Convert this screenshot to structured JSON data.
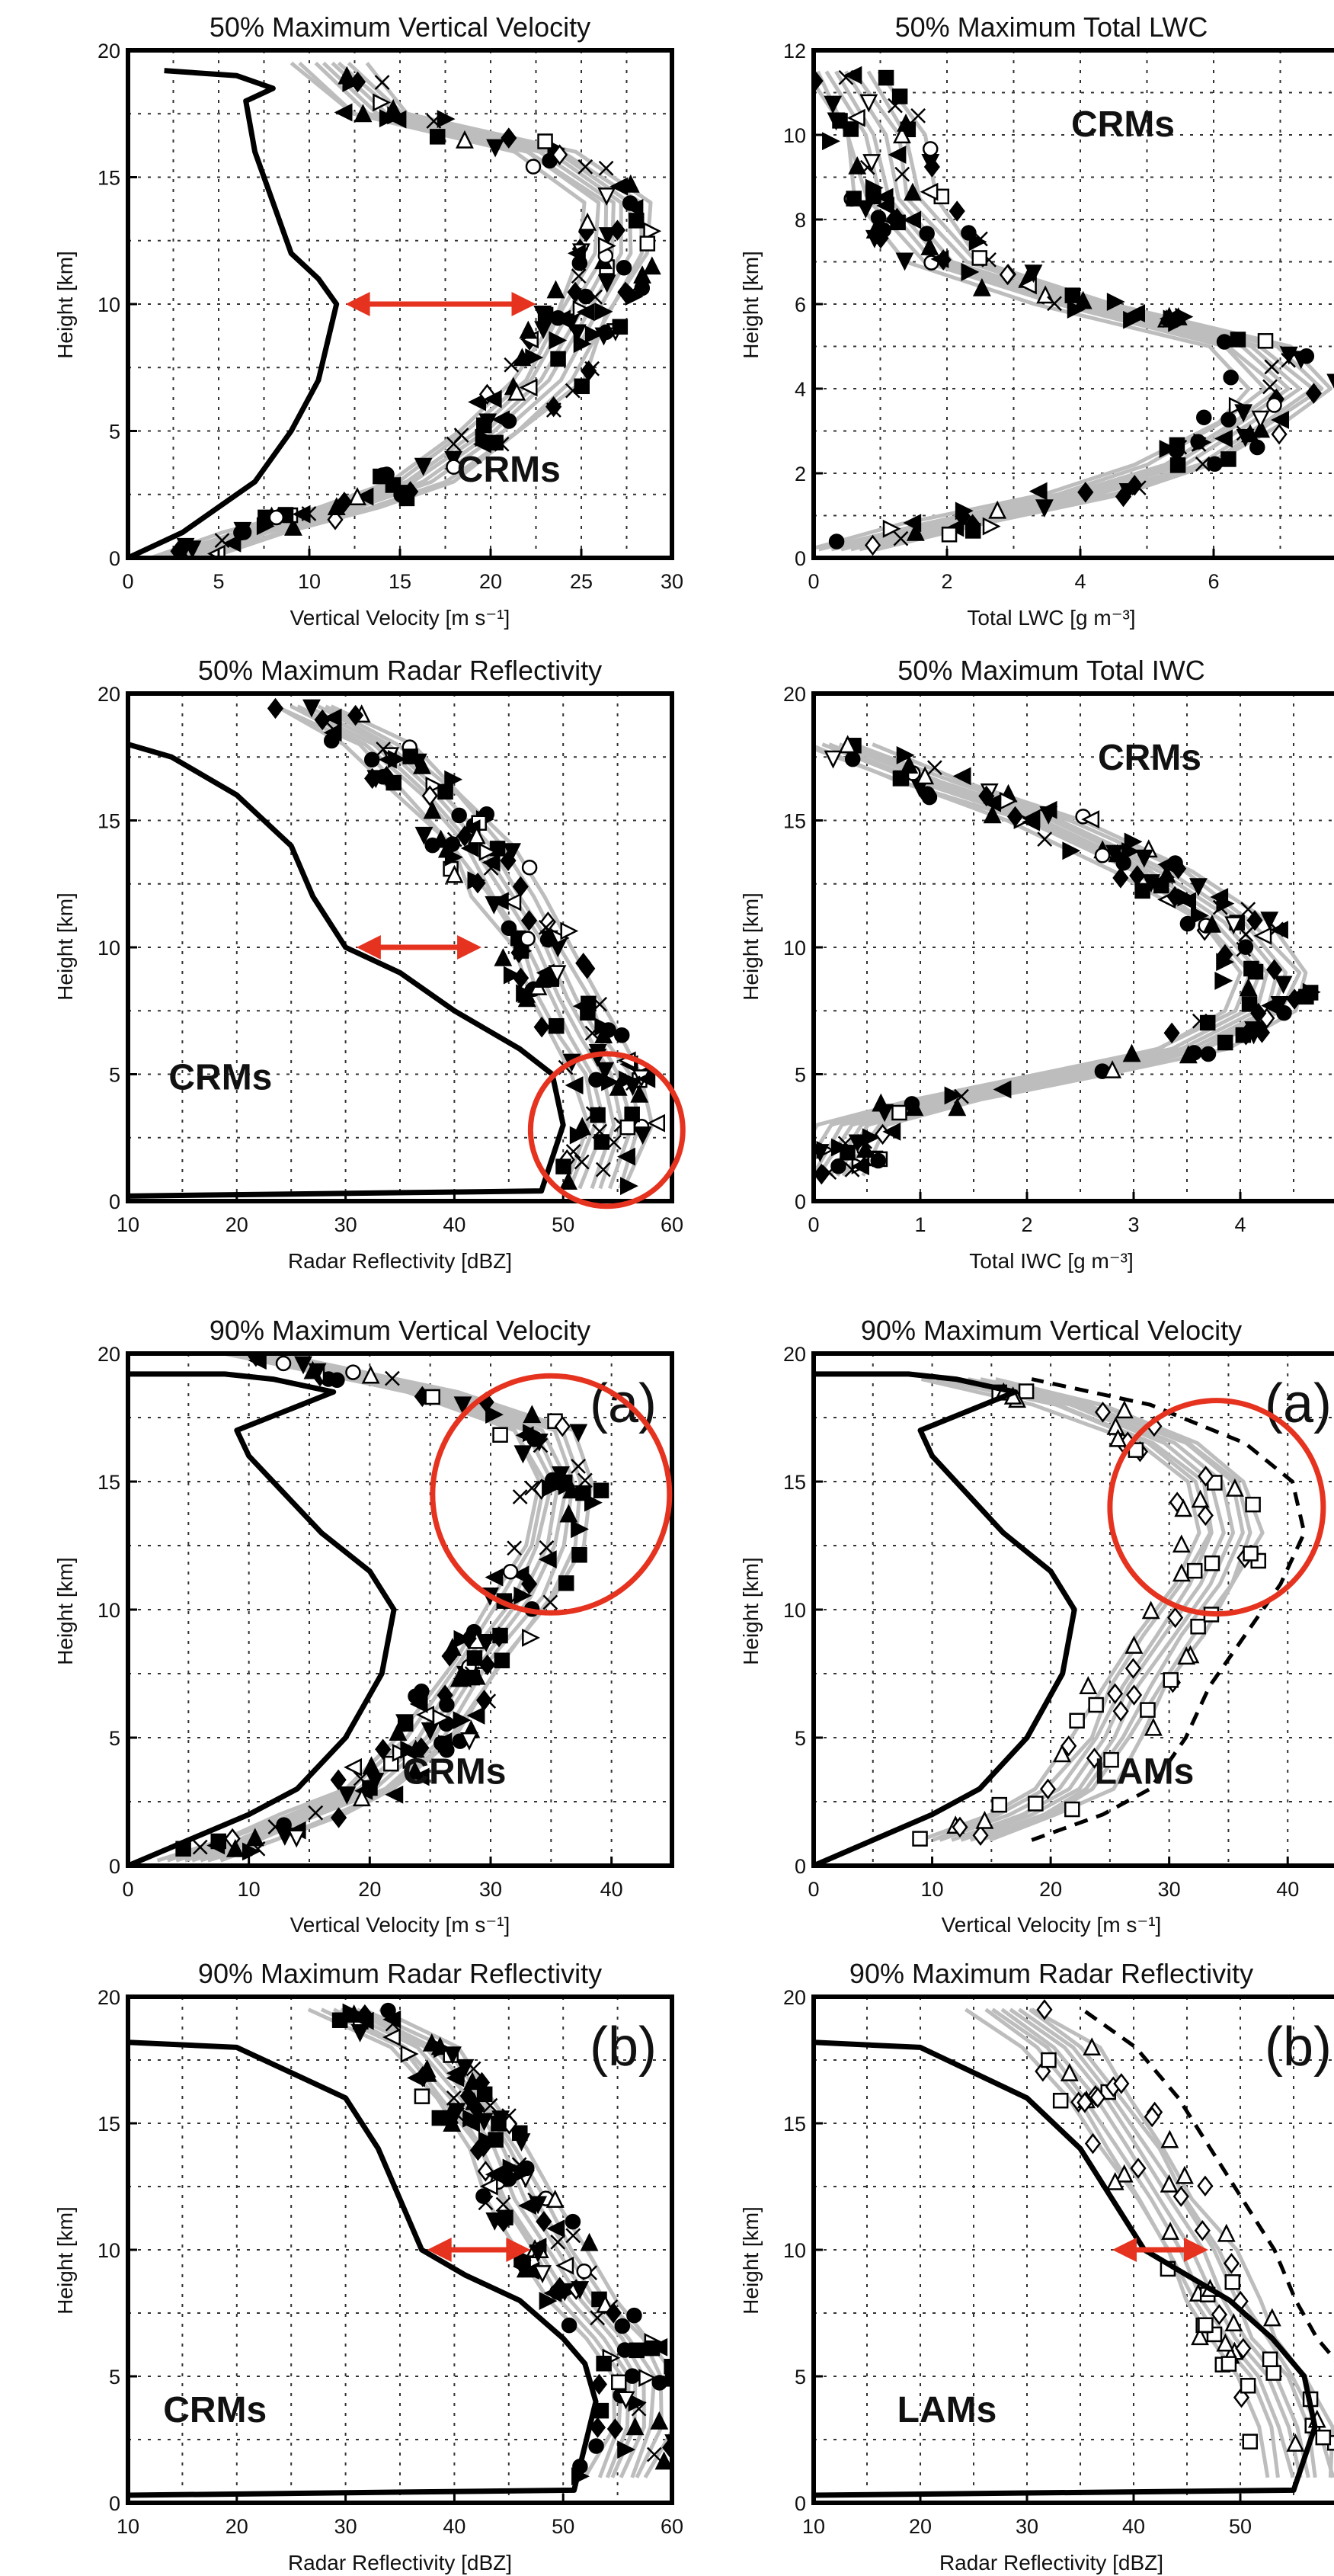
{
  "chart_data": [
    {
      "type": "line",
      "title": "50% Maximum Vertical Velocity",
      "xlabel": "Vertical Velocity [m s⁻¹]",
      "ylabel": "Height [km]",
      "xlim": [
        0,
        30
      ],
      "ylim": [
        0,
        20
      ],
      "xticks": [
        0,
        5,
        10,
        15,
        20,
        25,
        30
      ],
      "yticks": [
        0,
        5,
        10,
        15,
        20
      ],
      "group_label": "CRMs",
      "panel_label": "",
      "model_marker": "filled",
      "observed": {
        "x": [
          0,
          3,
          5,
          7,
          9,
          10.5,
          11.5,
          10.5,
          9,
          8,
          7,
          6.5,
          8,
          6,
          2
        ],
        "y": [
          0,
          1,
          2,
          3,
          5,
          7,
          10,
          11,
          12,
          14,
          16,
          18,
          18.5,
          19,
          19.2
        ]
      },
      "models_mean": {
        "x": [
          3,
          7,
          12,
          16,
          20,
          23,
          25,
          27,
          27,
          23,
          14,
          11
        ],
        "y": [
          0,
          1,
          2,
          3,
          5,
          7,
          9.5,
          12,
          14,
          16,
          17.5,
          19.5
        ]
      },
      "models_spread": 2.5,
      "arrow": {
        "x1": 12,
        "x2": 22.5,
        "y": 10
      },
      "circle": null
    },
    {
      "type": "line",
      "title": "50% Maximum Total LWC",
      "xlabel": "Total LWC [g m⁻³]",
      "ylabel": "Height [km]",
      "xlim": [
        0,
        8
      ],
      "ylim": [
        0,
        12
      ],
      "xticks": [
        0,
        2,
        4,
        6
      ],
      "yticks": [
        0,
        2,
        4,
        6,
        8,
        10,
        12
      ],
      "group_label": "CRMs",
      "panel_label": "",
      "model_marker": "filled",
      "observed": null,
      "models_mean": {
        "x": [
          0.5,
          2,
          4,
          5.5,
          6.5,
          7.2,
          6.5,
          4,
          2,
          1.2,
          1,
          0.4
        ],
        "y": [
          0.2,
          0.8,
          1.5,
          2.2,
          3.2,
          4,
          5,
          6,
          7,
          8.5,
          10,
          11.5
        ]
      },
      "models_spread": 0.8,
      "arrow": null,
      "circle": null
    },
    {
      "type": "line",
      "title": "50% Maximum Radar Reflectivity",
      "xlabel": "Radar Reflectivity [dBZ]",
      "ylabel": "Height [km]",
      "xlim": [
        10,
        60
      ],
      "ylim": [
        0,
        20
      ],
      "xticks": [
        10,
        20,
        30,
        40,
        50,
        60
      ],
      "yticks": [
        0,
        5,
        10,
        15,
        20
      ],
      "group_label": "CRMs",
      "panel_label": "",
      "model_marker": "filled",
      "observed": {
        "x": [
          10,
          48,
          50,
          49,
          46,
          40,
          35,
          30,
          27,
          25,
          20,
          14,
          10
        ],
        "y": [
          0.2,
          0.4,
          3,
          5,
          6,
          7.5,
          9,
          10,
          12,
          14,
          16,
          17.5,
          18
        ]
      },
      "models_mean": {
        "x": [
          53,
          55,
          54,
          52,
          50,
          48,
          45,
          42,
          38,
          33,
          26
        ],
        "y": [
          0.5,
          3,
          5,
          6.5,
          8,
          10,
          12,
          14,
          16,
          18,
          19.5
        ]
      },
      "models_spread": 4,
      "arrow": {
        "x1": 31,
        "x2": 42.5,
        "y": 10
      },
      "circle": {
        "cx": 54,
        "cy": 2.8,
        "r": 7
      }
    },
    {
      "type": "line",
      "title": "50% Maximum Total IWC",
      "xlabel": "Total IWC [g m⁻³]",
      "ylabel": "Height [km]",
      "xlim": [
        0,
        5
      ],
      "ylim": [
        0,
        20
      ],
      "xticks": [
        0,
        1,
        2,
        3,
        4
      ],
      "yticks": [
        0,
        5,
        10,
        15,
        20
      ],
      "group_label": "CRMs",
      "panel_label": "",
      "model_marker": "filled",
      "observed": null,
      "models_mean": {
        "x": [
          0.1,
          0.4,
          1.2,
          2.4,
          3.5,
          4.2,
          4.3,
          3.9,
          3.2,
          2.2,
          1.1,
          0.2
        ],
        "y": [
          1,
          3,
          4,
          5,
          6,
          7.5,
          9,
          11,
          13,
          15,
          16.5,
          18
        ]
      },
      "models_spread": 0.45,
      "arrow": null,
      "circle": null
    },
    {
      "type": "line",
      "title": "90% Maximum Vertical Velocity",
      "xlabel": "Vertical Velocity [m s⁻¹]",
      "ylabel": "Height [km]",
      "xlim": [
        0,
        45
      ],
      "ylim": [
        0,
        20
      ],
      "xticks": [
        0,
        10,
        20,
        30,
        40
      ],
      "yticks": [
        0,
        5,
        10,
        15,
        20
      ],
      "group_label": "CRMs",
      "panel_label": "(a)",
      "model_marker": "filled",
      "observed": {
        "x": [
          0,
          5,
          10,
          14,
          18,
          21,
          22,
          20,
          16,
          13,
          10,
          9,
          17,
          12,
          8,
          0
        ],
        "y": [
          0,
          1,
          2,
          3,
          5,
          7.5,
          10,
          11.5,
          13,
          14.5,
          16,
          17,
          18.5,
          19,
          19.2,
          19.2
        ]
      },
      "models_mean": {
        "x": [
          5,
          10,
          15,
          20,
          25,
          29,
          33,
          35,
          36,
          34,
          25,
          10
        ],
        "y": [
          0.2,
          1,
          2,
          3,
          5,
          8,
          10.5,
          12.5,
          15,
          17,
          18.5,
          20
        ]
      },
      "models_spread": 3.5,
      "arrow": null,
      "circle": {
        "cx": 35,
        "cy": 14.5,
        "r": 9.8
      }
    },
    {
      "type": "line",
      "title": "90% Maximum Vertical Velocity",
      "xlabel": "Vertical Velocity [m s⁻¹]",
      "ylabel": "Height [km]",
      "xlim": [
        0,
        45
      ],
      "ylim": [
        0,
        20
      ],
      "xticks": [
        0,
        10,
        20,
        30,
        40
      ],
      "yticks": [
        0,
        5,
        10,
        15,
        20
      ],
      "group_label": "LAMs",
      "panel_label": "(a)",
      "model_marker": "open",
      "observed": {
        "x": [
          0,
          5,
          10,
          14,
          18,
          21,
          22,
          20,
          16,
          13,
          10,
          9,
          17,
          12,
          8,
          0
        ],
        "y": [
          0,
          1,
          2,
          3,
          5,
          7.5,
          10,
          11.5,
          13,
          14.5,
          16,
          17,
          18.5,
          19,
          19.2,
          19.2
        ]
      },
      "models_mean": {
        "x": [
          12,
          18,
          22,
          25,
          27,
          30,
          33,
          35,
          34,
          30,
          22,
          12
        ],
        "y": [
          1,
          2,
          3,
          5,
          7,
          9,
          11,
          13,
          15,
          16.5,
          18,
          19
        ]
      },
      "models_spread": 4,
      "arrow": null,
      "circle": {
        "cx": 34,
        "cy": 14,
        "r": 9
      }
    },
    {
      "type": "line",
      "title": "90% Maximum Radar Reflectivity",
      "xlabel": "Radar Reflectivity [dBZ]",
      "ylabel": "Height [km]",
      "xlim": [
        10,
        60
      ],
      "ylim": [
        0,
        20
      ],
      "xticks": [
        10,
        20,
        30,
        40,
        50,
        60
      ],
      "yticks": [
        0,
        5,
        10,
        15,
        20
      ],
      "group_label": "CRMs",
      "panel_label": "(b)",
      "model_marker": "filled",
      "observed": {
        "x": [
          10,
          51,
          53,
          52,
          50,
          46,
          41,
          37,
          35,
          33,
          30,
          20,
          10
        ],
        "y": [
          0.3,
          0.5,
          4,
          5.5,
          6.5,
          8,
          9,
          10,
          12,
          14,
          16,
          18,
          18.2
        ]
      },
      "models_mean": {
        "x": [
          55,
          57,
          57,
          55,
          52,
          49,
          46,
          44,
          41,
          37,
          30
        ],
        "y": [
          1,
          3,
          5,
          6.5,
          8,
          10,
          12,
          14,
          16,
          18,
          19.5
        ]
      },
      "models_spread": 4,
      "arrow": {
        "x1": 37.5,
        "x2": 47,
        "y": 10
      },
      "circle": null
    },
    {
      "type": "line",
      "title": "90% Maximum Radar Reflectivity",
      "xlabel": "Radar Reflectivity [dBZ]",
      "ylabel": "Height [km]",
      "xlim": [
        10,
        60
      ],
      "ylim": [
        0,
        20
      ],
      "xticks": [
        10,
        20,
        30,
        40,
        50
      ],
      "yticks": [
        0,
        5,
        10,
        15,
        20
      ],
      "group_label": "LAMs",
      "panel_label": "(b)",
      "model_marker": "open",
      "observed": {
        "x": [
          10,
          55,
          57,
          56,
          53,
          49,
          45,
          41,
          38,
          35,
          30,
          20,
          10
        ],
        "y": [
          0.3,
          0.5,
          3,
          5,
          6.5,
          8,
          9,
          10,
          12,
          14,
          16,
          18,
          18.2
        ]
      },
      "models_mean": {
        "x": [
          56,
          55,
          53,
          50,
          48,
          46,
          43,
          40,
          37,
          33,
          28
        ],
        "y": [
          1,
          3,
          5,
          6.5,
          8,
          10,
          12,
          14,
          16,
          18,
          19.5
        ]
      },
      "models_spread": 4.5,
      "arrow": {
        "x1": 38,
        "x2": 47,
        "y": 10
      },
      "circle": null
    }
  ]
}
